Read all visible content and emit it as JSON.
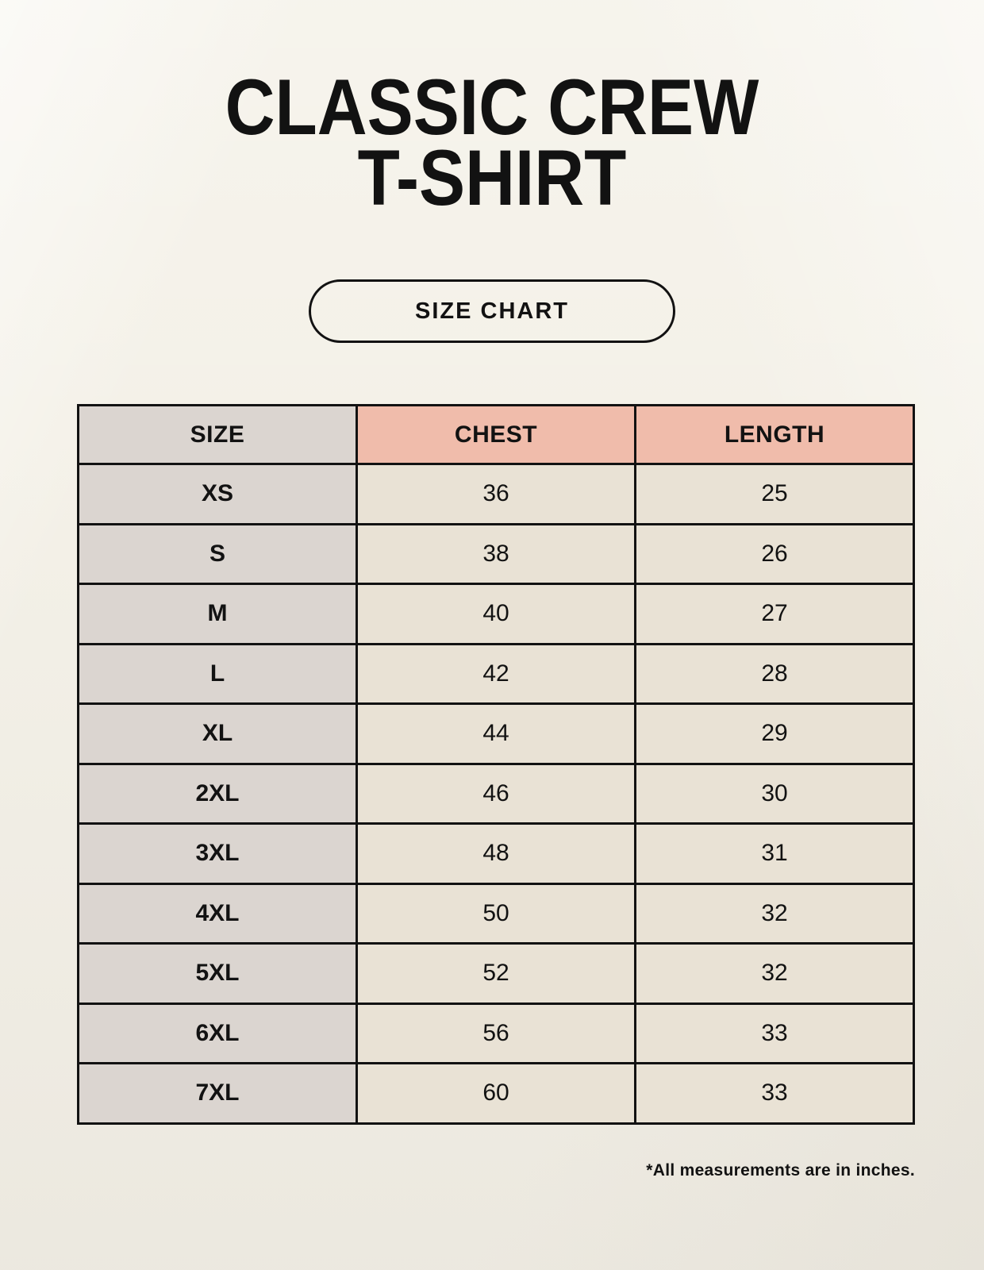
{
  "header": {
    "title_line1": "CLASSIC CREW",
    "title_line2": "T-SHIRT",
    "badge_label": "SIZE CHART"
  },
  "chart_data": {
    "type": "table",
    "title": "CLASSIC CREW T-SHIRT",
    "subtitle": "SIZE CHART",
    "columns": [
      "SIZE",
      "CHEST",
      "LENGTH"
    ],
    "rows": [
      [
        "XS",
        "36",
        "25"
      ],
      [
        "S",
        "38",
        "26"
      ],
      [
        "M",
        "40",
        "27"
      ],
      [
        "L",
        "42",
        "28"
      ],
      [
        "XL",
        "44",
        "29"
      ],
      [
        "2XL",
        "46",
        "30"
      ],
      [
        "3XL",
        "48",
        "31"
      ],
      [
        "4XL",
        "50",
        "32"
      ],
      [
        "5XL",
        "52",
        "32"
      ],
      [
        "6XL",
        "56",
        "33"
      ],
      [
        "7XL",
        "60",
        "33"
      ]
    ],
    "units": "inches"
  },
  "footnote": "*All measurements are in inches.",
  "colors": {
    "page_background": "#f4f1e8",
    "size_column_fill": "#dbd5d0",
    "accent_header_fill": "#f0bcab",
    "value_cell_fill": "#e9e2d5",
    "border": "#121212",
    "text": "#121212"
  }
}
